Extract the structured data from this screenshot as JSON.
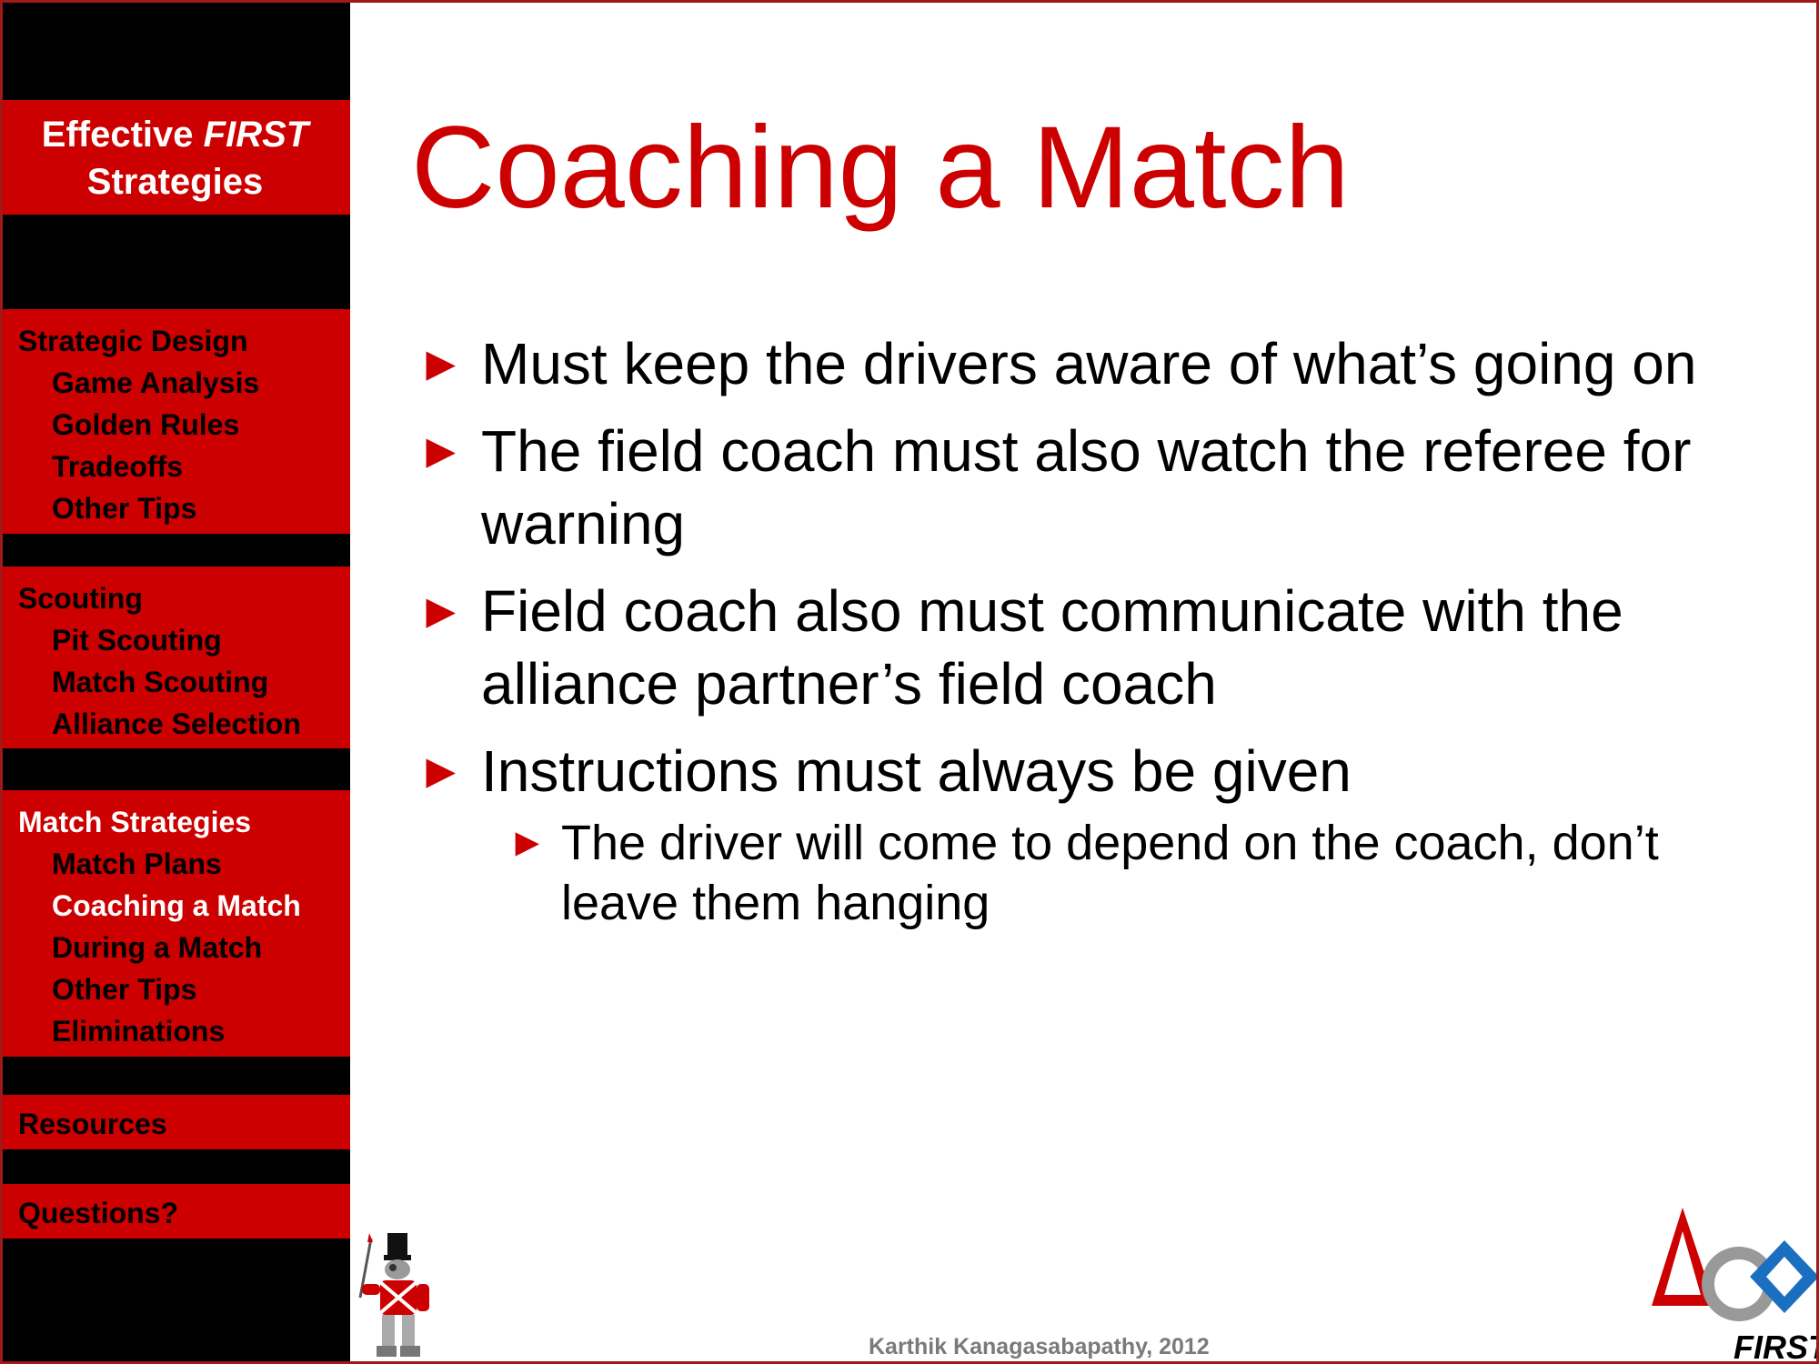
{
  "sidebar": {
    "brand_line1": "Effective",
    "brand_line1_italic": "FIRST",
    "brand_line2": "Strategies",
    "sections": [
      {
        "heading": "Strategic Design",
        "items": [
          "Game Analysis",
          "Golden Rules",
          "Tradeoffs",
          "Other Tips"
        ]
      },
      {
        "heading": "Scouting",
        "items": [
          "Pit Scouting",
          "Match Scouting",
          "Alliance Selection"
        ]
      },
      {
        "heading": "Match Strategies",
        "items": [
          "Match Plans",
          "Coaching a Match",
          "During a Match",
          "Other Tips",
          "Eliminations"
        ]
      },
      {
        "heading": "Resources",
        "items": []
      },
      {
        "heading": "Questions?",
        "items": []
      }
    ]
  },
  "slide": {
    "title": "Coaching a Match",
    "bullets": [
      "Must keep the drivers aware of what’s going on",
      "The field coach must also watch the referee for warning",
      "Field coach also must communicate with the alliance partner’s field coach",
      "Instructions must always be given"
    ],
    "sub_bullets": [
      "The driver will come to depend on the coach, don’t leave them hanging"
    ]
  },
  "footer": {
    "text": "Karthik Kanagasabapathy, 2012"
  },
  "logo": {
    "text": "FIRST"
  },
  "colors": {
    "accent": "#cc0000",
    "sidebar_bg": "#000000",
    "active_text": "#ffffff"
  }
}
